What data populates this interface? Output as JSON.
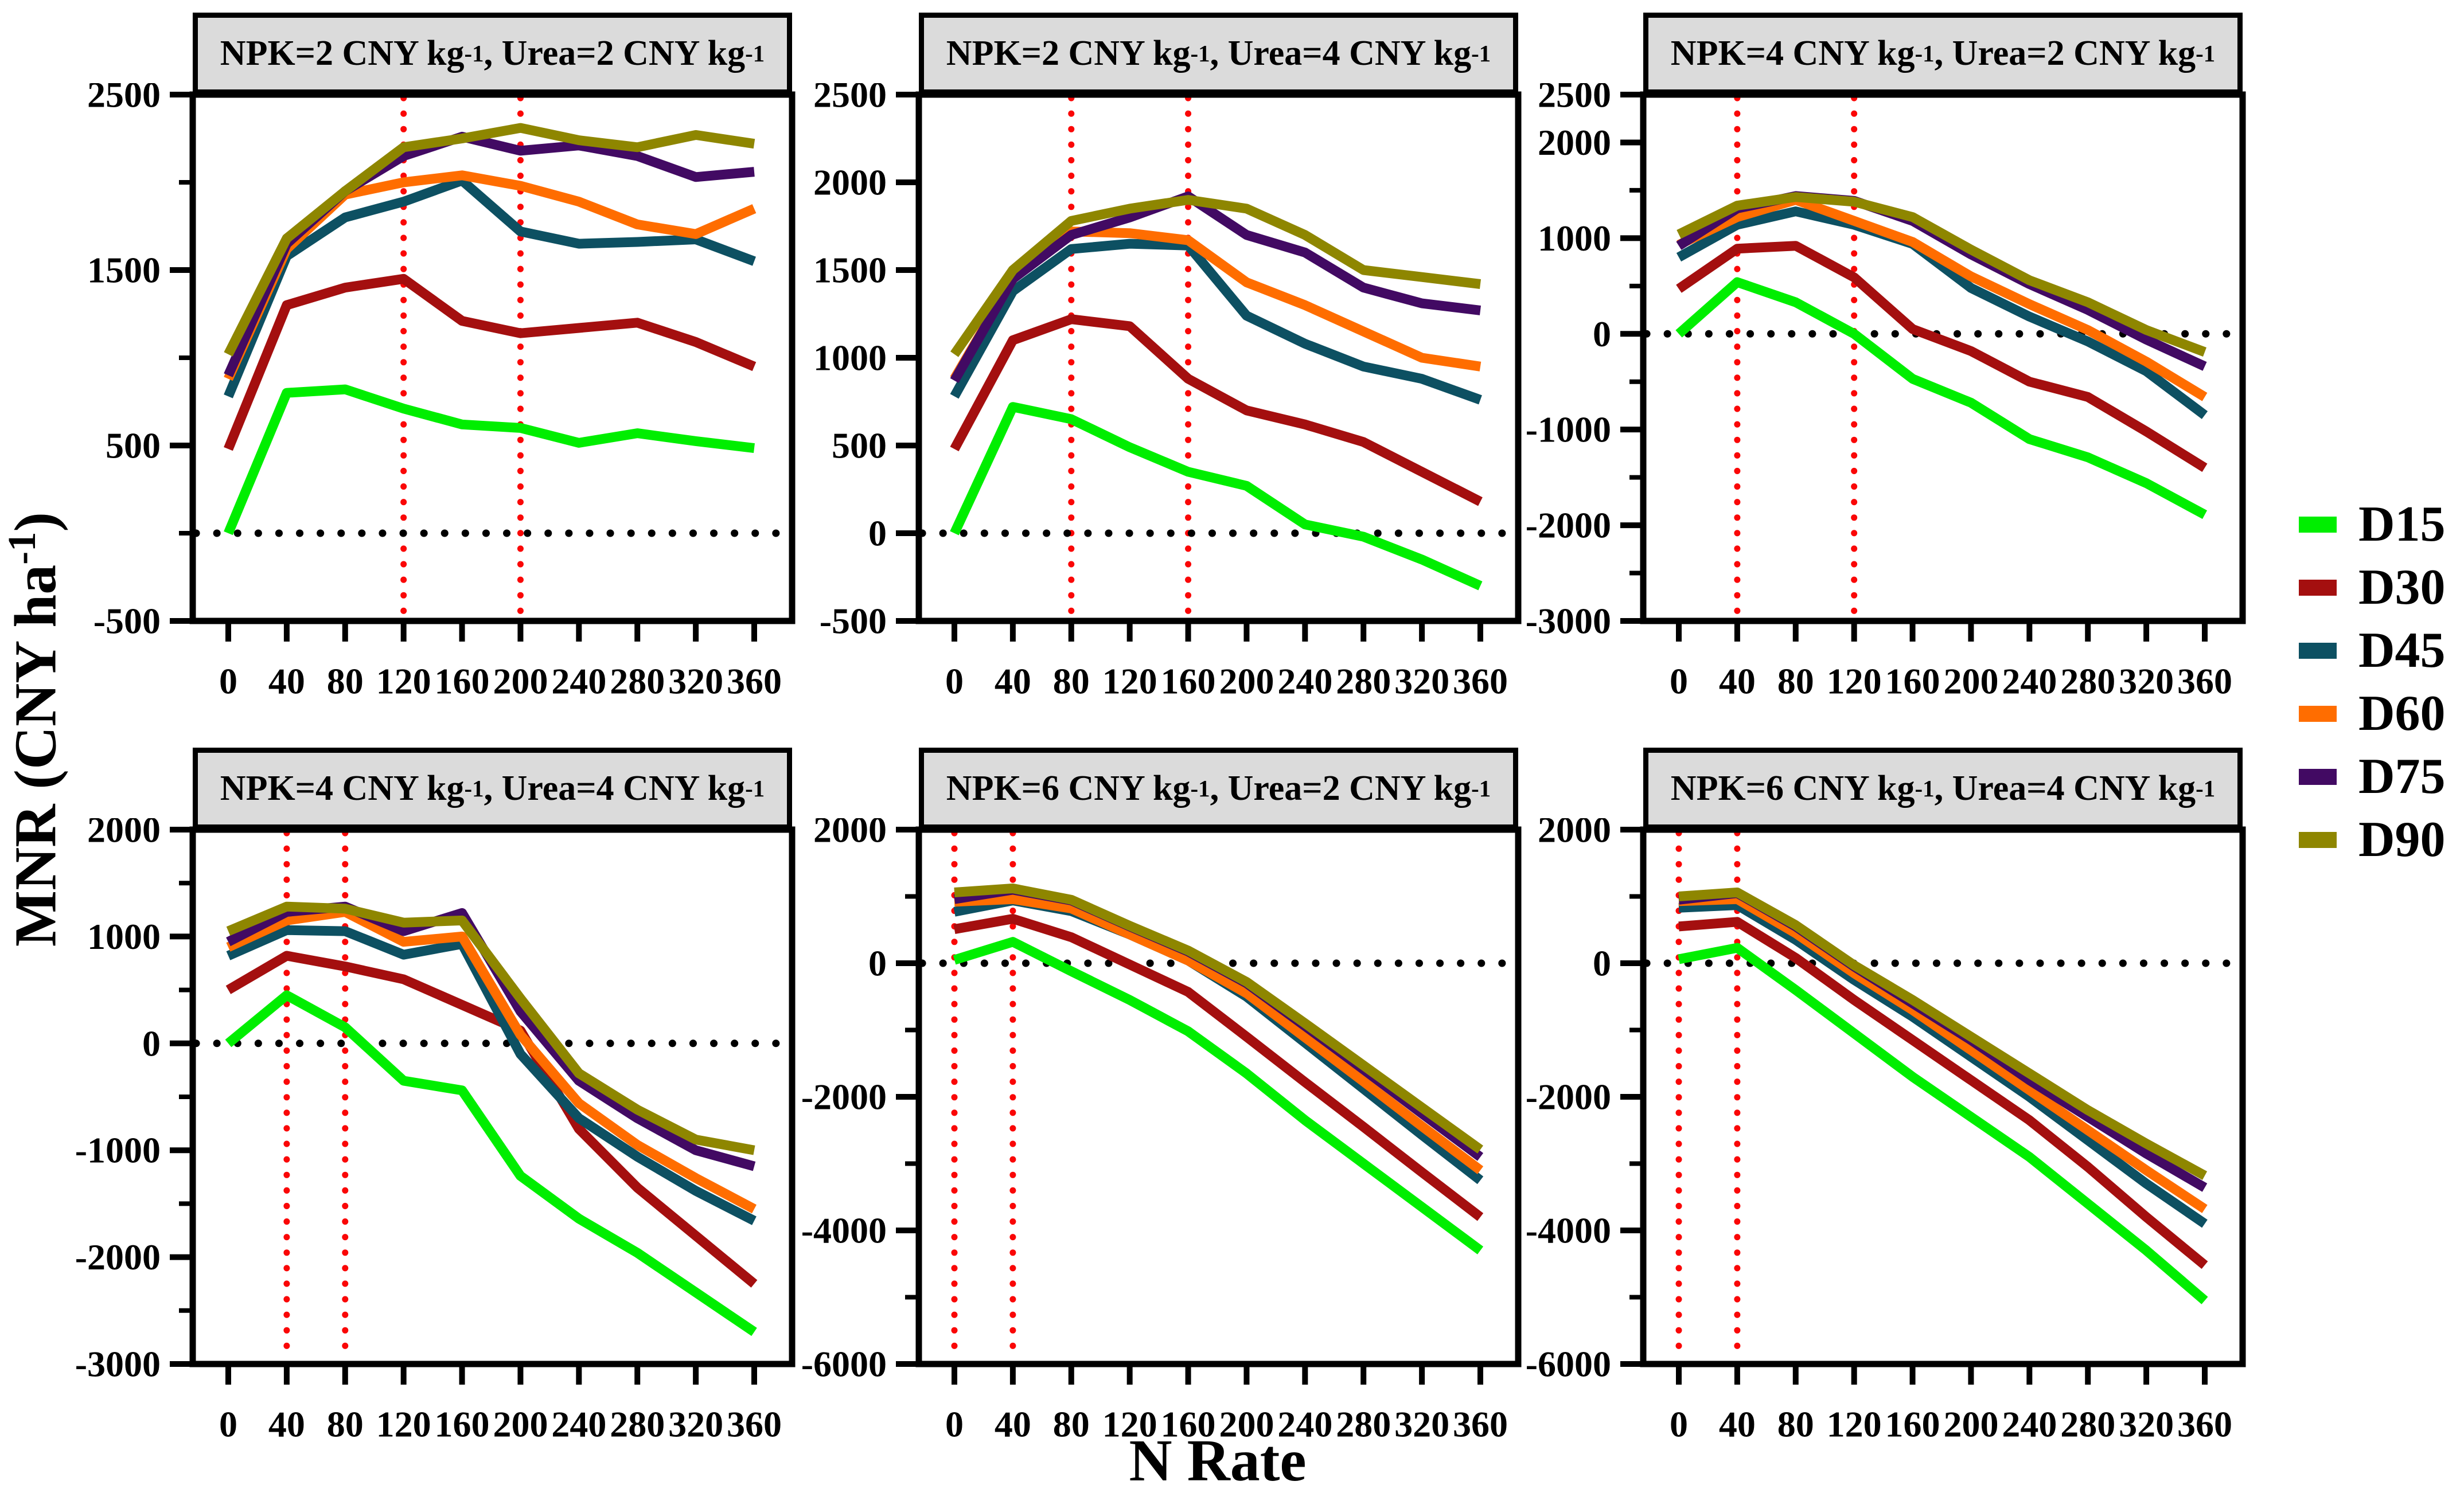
{
  "figure": {
    "x_axis_title": "N Rate",
    "y_axis_title_parts": [
      [
        "t",
        "MNR (CNY ha"
      ],
      [
        "s",
        "-1"
      ],
      [
        "t",
        ")"
      ]
    ]
  },
  "legend": {
    "items": [
      {
        "label": "D15",
        "color": "#00ee00"
      },
      {
        "label": "D30",
        "color": "#a40f0f"
      },
      {
        "label": "D45",
        "color": "#0d5062"
      },
      {
        "label": "D60",
        "color": "#ff6d00"
      },
      {
        "label": "D75",
        "color": "#420a63"
      },
      {
        "label": "D90",
        "color": "#8e8600"
      }
    ]
  },
  "chart_data": [
    {
      "type": "line",
      "title_parts": [
        [
          "t",
          "NPK=2 CNY kg"
        ],
        [
          "s",
          "-1"
        ],
        [
          "t",
          ", Urea=2 CNY kg"
        ],
        [
          "s",
          "-1"
        ]
      ],
      "x": [
        0,
        40,
        80,
        120,
        160,
        200,
        240,
        280,
        320,
        360
      ],
      "ylim": [
        -500,
        2500
      ],
      "yticks_labeled": [
        2500,
        1500,
        500,
        -500
      ],
      "yticks_minor": [
        2000,
        1000,
        0
      ],
      "vlines": [
        120,
        200
      ],
      "zero_line": 0,
      "series": [
        {
          "name": "D15",
          "values": [
            0,
            800,
            820,
            710,
            620,
            600,
            515,
            570,
            525,
            485
          ]
        },
        {
          "name": "D30",
          "values": [
            480,
            1300,
            1400,
            1450,
            1210,
            1140,
            1170,
            1200,
            1090,
            950
          ]
        },
        {
          "name": "D45",
          "values": [
            780,
            1580,
            1800,
            1890,
            2010,
            1720,
            1650,
            1660,
            1675,
            1550
          ]
        },
        {
          "name": "D60",
          "values": [
            880,
            1620,
            1930,
            2000,
            2040,
            1980,
            1890,
            1760,
            1705,
            1850
          ]
        },
        {
          "name": "D75",
          "values": [
            900,
            1650,
            1950,
            2150,
            2260,
            2180,
            2210,
            2150,
            2030,
            2060
          ]
        },
        {
          "name": "D90",
          "values": [
            1020,
            1680,
            1950,
            2200,
            2250,
            2310,
            2240,
            2200,
            2270,
            2220
          ]
        }
      ]
    },
    {
      "type": "line",
      "title_parts": [
        [
          "t",
          "NPK=2 CNY kg"
        ],
        [
          "s",
          "-1"
        ],
        [
          "t",
          ", Urea=4 CNY kg"
        ],
        [
          "s",
          "-1"
        ]
      ],
      "x": [
        0,
        40,
        80,
        120,
        160,
        200,
        240,
        280,
        320,
        360
      ],
      "ylim": [
        -500,
        2500
      ],
      "yticks_labeled": [
        2500,
        2000,
        1500,
        1000,
        500,
        0,
        -500
      ],
      "yticks_minor": [],
      "vlines": [
        80,
        160
      ],
      "zero_line": 0,
      "series": [
        {
          "name": "D15",
          "values": [
            0,
            720,
            650,
            490,
            350,
            270,
            50,
            -20,
            -150,
            -300
          ]
        },
        {
          "name": "D30",
          "values": [
            480,
            1100,
            1220,
            1180,
            880,
            700,
            620,
            520,
            350,
            180
          ]
        },
        {
          "name": "D45",
          "values": [
            780,
            1380,
            1620,
            1650,
            1640,
            1240,
            1080,
            950,
            880,
            760
          ]
        },
        {
          "name": "D60",
          "values": [
            880,
            1450,
            1720,
            1710,
            1670,
            1430,
            1300,
            1150,
            1000,
            950
          ]
        },
        {
          "name": "D75",
          "values": [
            870,
            1450,
            1700,
            1800,
            1920,
            1700,
            1600,
            1400,
            1310,
            1270
          ]
        },
        {
          "name": "D90",
          "values": [
            1020,
            1500,
            1780,
            1850,
            1900,
            1850,
            1700,
            1500,
            1460,
            1420
          ]
        }
      ]
    },
    {
      "type": "line",
      "title_parts": [
        [
          "t",
          "NPK=4 CNY kg"
        ],
        [
          "s",
          "-1"
        ],
        [
          "t",
          ", Urea=2 CNY kg"
        ],
        [
          "s",
          "-1"
        ]
      ],
      "x": [
        0,
        40,
        80,
        120,
        160,
        200,
        240,
        280,
        320,
        360
      ],
      "ylim": [
        -3000,
        2500
      ],
      "yticks_labeled": [
        2500,
        2000,
        1000,
        0,
        -1000,
        -2000,
        -3000
      ],
      "yticks_minor": [
        1500,
        500,
        -500,
        -1500,
        -2500
      ],
      "vlines": [
        40,
        120
      ],
      "zero_line": 0,
      "series": [
        {
          "name": "D15",
          "values": [
            0,
            540,
            330,
            0,
            -470,
            -720,
            -1100,
            -1290,
            -1560,
            -1890
          ]
        },
        {
          "name": "D30",
          "values": [
            470,
            890,
            920,
            590,
            50,
            -180,
            -500,
            -660,
            -1020,
            -1400
          ]
        },
        {
          "name": "D45",
          "values": [
            800,
            1140,
            1280,
            1140,
            940,
            480,
            180,
            -80,
            -390,
            -850
          ]
        },
        {
          "name": "D60",
          "values": [
            930,
            1220,
            1400,
            1180,
            960,
            600,
            310,
            40,
            -290,
            -660
          ]
        },
        {
          "name": "D75",
          "values": [
            920,
            1310,
            1440,
            1390,
            1180,
            830,
            520,
            250,
            -60,
            -340
          ]
        },
        {
          "name": "D90",
          "values": [
            1040,
            1340,
            1430,
            1380,
            1220,
            880,
            560,
            330,
            40,
            -190
          ]
        }
      ]
    },
    {
      "type": "line",
      "title_parts": [
        [
          "t",
          "NPK=4 CNY kg"
        ],
        [
          "s",
          "-1"
        ],
        [
          "t",
          ", Urea=4 CNY kg"
        ],
        [
          "s",
          "-1"
        ]
      ],
      "x": [
        0,
        40,
        80,
        120,
        160,
        200,
        240,
        280,
        320,
        360
      ],
      "ylim": [
        -3000,
        2000
      ],
      "yticks_labeled": [
        2000,
        1000,
        0,
        -1000,
        -2000,
        -3000
      ],
      "yticks_minor": [
        1500,
        500,
        -500,
        -1500,
        -2500
      ],
      "vlines": [
        40,
        80
      ],
      "zero_line": 0,
      "series": [
        {
          "name": "D15",
          "values": [
            0,
            450,
            150,
            -350,
            -440,
            -1240,
            -1640,
            -1960,
            -2330,
            -2700
          ]
        },
        {
          "name": "D30",
          "values": [
            500,
            820,
            720,
            600,
            360,
            120,
            -800,
            -1350,
            -1800,
            -2250
          ]
        },
        {
          "name": "D45",
          "values": [
            820,
            1060,
            1050,
            830,
            930,
            -100,
            -700,
            -1060,
            -1380,
            -1660
          ]
        },
        {
          "name": "D60",
          "values": [
            900,
            1150,
            1230,
            950,
            1000,
            80,
            -560,
            -950,
            -1260,
            -1550
          ]
        },
        {
          "name": "D75",
          "values": [
            950,
            1230,
            1280,
            1050,
            1220,
            300,
            -350,
            -700,
            -1000,
            -1150
          ]
        },
        {
          "name": "D90",
          "values": [
            1050,
            1280,
            1260,
            1130,
            1150,
            420,
            -280,
            -620,
            -900,
            -1000
          ]
        }
      ]
    },
    {
      "type": "line",
      "title_parts": [
        [
          "t",
          "NPK=6 CNY kg"
        ],
        [
          "s",
          "-1"
        ],
        [
          "t",
          ", Urea=2 CNY kg"
        ],
        [
          "s",
          "-1"
        ]
      ],
      "x": [
        0,
        40,
        80,
        120,
        160,
        200,
        240,
        280,
        320,
        360
      ],
      "ylim": [
        -6000,
        2000
      ],
      "yticks_labeled": [
        2000,
        0,
        -2000,
        -4000,
        -6000
      ],
      "yticks_minor": [
        1000,
        -1000,
        -3000,
        -5000
      ],
      "vlines": [
        0,
        40
      ],
      "zero_line": 0,
      "series": [
        {
          "name": "D15",
          "values": [
            50,
            320,
            -120,
            -550,
            -1020,
            -1650,
            -2350,
            -3000,
            -3650,
            -4300
          ]
        },
        {
          "name": "D30",
          "values": [
            510,
            665,
            390,
            -20,
            -430,
            -1100,
            -1780,
            -2450,
            -3130,
            -3800
          ]
        },
        {
          "name": "D45",
          "values": [
            770,
            940,
            780,
            430,
            40,
            -500,
            -1190,
            -1880,
            -2570,
            -3250
          ]
        },
        {
          "name": "D60",
          "values": [
            920,
            960,
            820,
            430,
            40,
            -450,
            -1110,
            -1770,
            -2440,
            -3100
          ]
        },
        {
          "name": "D75",
          "values": [
            960,
            1100,
            940,
            550,
            175,
            -300,
            -940,
            -1590,
            -2250,
            -2900
          ]
        },
        {
          "name": "D90",
          "values": [
            1060,
            1120,
            950,
            560,
            190,
            -280,
            -900,
            -1530,
            -2160,
            -2790
          ]
        }
      ]
    },
    {
      "type": "line",
      "title_parts": [
        [
          "t",
          "NPK=6 CNY kg"
        ],
        [
          "s",
          "-1"
        ],
        [
          "t",
          ", Urea=4 CNY kg"
        ],
        [
          "s",
          "-1"
        ]
      ],
      "x": [
        0,
        40,
        80,
        120,
        160,
        200,
        240,
        280,
        320,
        360
      ],
      "ylim": [
        -6000,
        2000
      ],
      "yticks_labeled": [
        2000,
        0,
        -2000,
        -4000,
        -6000
      ],
      "yticks_minor": [
        1000,
        -1000,
        -3000,
        -5000
      ],
      "vlines": [
        0,
        40
      ],
      "zero_line": 0,
      "series": [
        {
          "name": "D15",
          "values": [
            60,
            230,
            -400,
            -1050,
            -1700,
            -2300,
            -2900,
            -3600,
            -4300,
            -5050
          ]
        },
        {
          "name": "D30",
          "values": [
            550,
            620,
            80,
            -550,
            -1150,
            -1750,
            -2350,
            -3050,
            -3800,
            -4520
          ]
        },
        {
          "name": "D45",
          "values": [
            830,
            870,
            350,
            -250,
            -800,
            -1400,
            -2000,
            -2650,
            -3300,
            -3900
          ]
        },
        {
          "name": "D60",
          "values": [
            930,
            960,
            450,
            -150,
            -700,
            -1300,
            -1900,
            -2500,
            -3100,
            -3680
          ]
        },
        {
          "name": "D75",
          "values": [
            950,
            1050,
            550,
            -50,
            -600,
            -1150,
            -1750,
            -2300,
            -2850,
            -3360
          ]
        },
        {
          "name": "D90",
          "values": [
            1000,
            1060,
            570,
            -30,
            -550,
            -1100,
            -1650,
            -2200,
            -2700,
            -3180
          ]
        }
      ]
    }
  ]
}
